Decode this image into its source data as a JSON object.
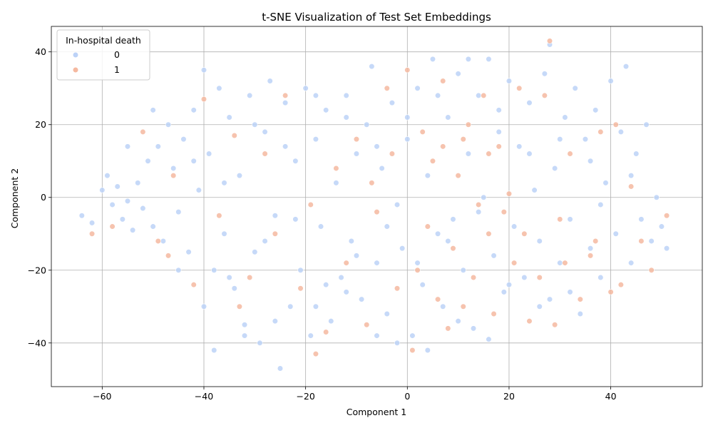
{
  "chart_data": {
    "type": "scatter",
    "title": "t-SNE Visualization of Test Set Embeddings",
    "xlabel": "Component 1",
    "ylabel": "Component 2",
    "xlim": [
      -70,
      58
    ],
    "ylim": [
      -52,
      47
    ],
    "xticks": [
      -60,
      -40,
      -20,
      0,
      20,
      40
    ],
    "yticks": [
      -40,
      -20,
      0,
      20,
      40
    ],
    "xtick_labels": [
      "−60",
      "−40",
      "−20",
      "0",
      "20",
      "40"
    ],
    "ytick_labels": [
      "−40",
      "−20",
      "0",
      "20",
      "40"
    ],
    "grid": true,
    "legend": {
      "title": "In-hospital death",
      "placement": "top-left",
      "entries": [
        "0",
        "1"
      ]
    },
    "series": [
      {
        "name": "0",
        "color": "#bcd2f7",
        "points": [
          [
            -64,
            -5
          ],
          [
            -62,
            -7
          ],
          [
            -60,
            2
          ],
          [
            -59,
            6
          ],
          [
            -58,
            -2
          ],
          [
            -57,
            3
          ],
          [
            -56,
            -6
          ],
          [
            -55,
            -1
          ],
          [
            -54,
            -9
          ],
          [
            -53,
            4
          ],
          [
            -52,
            -3
          ],
          [
            -51,
            10
          ],
          [
            -50,
            -8
          ],
          [
            -49,
            14
          ],
          [
            -48,
            -12
          ],
          [
            -47,
            20
          ],
          [
            -46,
            8
          ],
          [
            -45,
            -4
          ],
          [
            -44,
            16
          ],
          [
            -43,
            -15
          ],
          [
            -42,
            24
          ],
          [
            -41,
            2
          ],
          [
            -40,
            35
          ],
          [
            -40,
            -30
          ],
          [
            -39,
            12
          ],
          [
            -38,
            -20
          ],
          [
            -37,
            30
          ],
          [
            -36,
            -10
          ],
          [
            -35,
            22
          ],
          [
            -34,
            -25
          ],
          [
            -33,
            6
          ],
          [
            -32,
            -35
          ],
          [
            -31,
            28
          ],
          [
            -30,
            -15
          ],
          [
            -29,
            -40
          ],
          [
            -28,
            18
          ],
          [
            -27,
            32
          ],
          [
            -26,
            -5
          ],
          [
            -25,
            -47
          ],
          [
            -24,
            26
          ],
          [
            -23,
            -30
          ],
          [
            -22,
            10
          ],
          [
            -21,
            -20
          ],
          [
            -20,
            30
          ],
          [
            -19,
            -38
          ],
          [
            -18,
            16
          ],
          [
            -17,
            -8
          ],
          [
            -16,
            24
          ],
          [
            -15,
            -34
          ],
          [
            -14,
            4
          ],
          [
            -13,
            -22
          ],
          [
            -12,
            28
          ],
          [
            -11,
            -12
          ],
          [
            -10,
            12
          ],
          [
            -9,
            -28
          ],
          [
            -8,
            20
          ],
          [
            -7,
            36
          ],
          [
            -6,
            -18
          ],
          [
            -5,
            8
          ],
          [
            -4,
            -32
          ],
          [
            -3,
            26
          ],
          [
            -2,
            -2
          ],
          [
            -1,
            -14
          ],
          [
            0,
            16
          ],
          [
            1,
            -38
          ],
          [
            2,
            30
          ],
          [
            3,
            -24
          ],
          [
            4,
            6
          ],
          [
            5,
            38
          ],
          [
            6,
            -10
          ],
          [
            7,
            -30
          ],
          [
            8,
            22
          ],
          [
            9,
            -6
          ],
          [
            10,
            34
          ],
          [
            11,
            -20
          ],
          [
            12,
            12
          ],
          [
            13,
            -36
          ],
          [
            14,
            28
          ],
          [
            15,
            0
          ],
          [
            16,
            38
          ],
          [
            17,
            -16
          ],
          [
            18,
            18
          ],
          [
            19,
            -26
          ],
          [
            20,
            32
          ],
          [
            21,
            -8
          ],
          [
            22,
            14
          ],
          [
            23,
            -22
          ],
          [
            24,
            26
          ],
          [
            25,
            2
          ],
          [
            26,
            -12
          ],
          [
            27,
            34
          ],
          [
            28,
            42
          ],
          [
            28,
            -28
          ],
          [
            29,
            8
          ],
          [
            30,
            -18
          ],
          [
            31,
            22
          ],
          [
            32,
            -6
          ],
          [
            33,
            30
          ],
          [
            34,
            -32
          ],
          [
            35,
            16
          ],
          [
            36,
            -14
          ],
          [
            37,
            24
          ],
          [
            38,
            -22
          ],
          [
            39,
            4
          ],
          [
            40,
            32
          ],
          [
            41,
            -10
          ],
          [
            42,
            18
          ],
          [
            43,
            36
          ],
          [
            44,
            -18
          ],
          [
            45,
            12
          ],
          [
            46,
            -6
          ],
          [
            47,
            20
          ],
          [
            48,
            -12
          ],
          [
            49,
            0
          ],
          [
            50,
            -8
          ],
          [
            51,
            -14
          ],
          [
            -55,
            14
          ],
          [
            -50,
            24
          ],
          [
            -45,
            -20
          ],
          [
            -38,
            -42
          ],
          [
            -32,
            -38
          ],
          [
            -26,
            -34
          ],
          [
            -18,
            -30
          ],
          [
            -12,
            -26
          ],
          [
            -6,
            -38
          ],
          [
            -2,
            -40
          ],
          [
            4,
            -42
          ],
          [
            10,
            -34
          ],
          [
            16,
            -39
          ],
          [
            -35,
            -22
          ],
          [
            -28,
            -12
          ],
          [
            -22,
            -6
          ],
          [
            -16,
            -24
          ],
          [
            -10,
            -16
          ],
          [
            -4,
            -8
          ],
          [
            2,
            -18
          ],
          [
            8,
            -12
          ],
          [
            14,
            -4
          ],
          [
            20,
            -24
          ],
          [
            26,
            -30
          ],
          [
            32,
            -26
          ],
          [
            38,
            -2
          ],
          [
            44,
            6
          ],
          [
            -42,
            10
          ],
          [
            -36,
            4
          ],
          [
            -30,
            20
          ],
          [
            -24,
            14
          ],
          [
            -18,
            28
          ],
          [
            -12,
            22
          ],
          [
            -6,
            14
          ],
          [
            0,
            22
          ],
          [
            6,
            28
          ],
          [
            12,
            38
          ],
          [
            18,
            24
          ],
          [
            24,
            12
          ],
          [
            30,
            16
          ],
          [
            36,
            10
          ]
        ]
      },
      {
        "name": "1",
        "color": "#f5b9a0",
        "points": [
          [
            -62,
            -10
          ],
          [
            -58,
            -8
          ],
          [
            -52,
            18
          ],
          [
            -49,
            -12
          ],
          [
            -46,
            6
          ],
          [
            -42,
            -24
          ],
          [
            -40,
            27
          ],
          [
            -37,
            -5
          ],
          [
            -34,
            17
          ],
          [
            -31,
            -22
          ],
          [
            -28,
            12
          ],
          [
            -26,
            -10
          ],
          [
            -24,
            28
          ],
          [
            -21,
            -25
          ],
          [
            -18,
            -43
          ],
          [
            -16,
            -37
          ],
          [
            -14,
            8
          ],
          [
            -12,
            -18
          ],
          [
            -10,
            16
          ],
          [
            -8,
            -35
          ],
          [
            -6,
            -4
          ],
          [
            -4,
            30
          ],
          [
            -2,
            -25
          ],
          [
            0,
            35
          ],
          [
            1,
            -42
          ],
          [
            2,
            -20
          ],
          [
            3,
            18
          ],
          [
            4,
            -8
          ],
          [
            5,
            10
          ],
          [
            6,
            -28
          ],
          [
            7,
            32
          ],
          [
            8,
            -36
          ],
          [
            9,
            -14
          ],
          [
            10,
            6
          ],
          [
            11,
            -30
          ],
          [
            12,
            20
          ],
          [
            13,
            -22
          ],
          [
            14,
            -2
          ],
          [
            15,
            28
          ],
          [
            16,
            -10
          ],
          [
            17,
            -32
          ],
          [
            18,
            14
          ],
          [
            19,
            -4
          ],
          [
            20,
            1
          ],
          [
            21,
            -18
          ],
          [
            22,
            30
          ],
          [
            24,
            -34
          ],
          [
            26,
            -22
          ],
          [
            27,
            28
          ],
          [
            28,
            43
          ],
          [
            29,
            -35
          ],
          [
            30,
            -6
          ],
          [
            32,
            12
          ],
          [
            34,
            -28
          ],
          [
            36,
            -16
          ],
          [
            38,
            18
          ],
          [
            40,
            -26
          ],
          [
            41,
            20
          ],
          [
            42,
            -24
          ],
          [
            44,
            3
          ],
          [
            46,
            -12
          ],
          [
            48,
            -20
          ],
          [
            51,
            -5
          ],
          [
            -47,
            -16
          ],
          [
            -33,
            -30
          ],
          [
            -19,
            -2
          ],
          [
            -7,
            4
          ],
          [
            -3,
            12
          ],
          [
            7,
            14
          ],
          [
            11,
            16
          ],
          [
            16,
            12
          ],
          [
            23,
            -10
          ],
          [
            31,
            -18
          ],
          [
            37,
            -12
          ]
        ]
      }
    ]
  }
}
